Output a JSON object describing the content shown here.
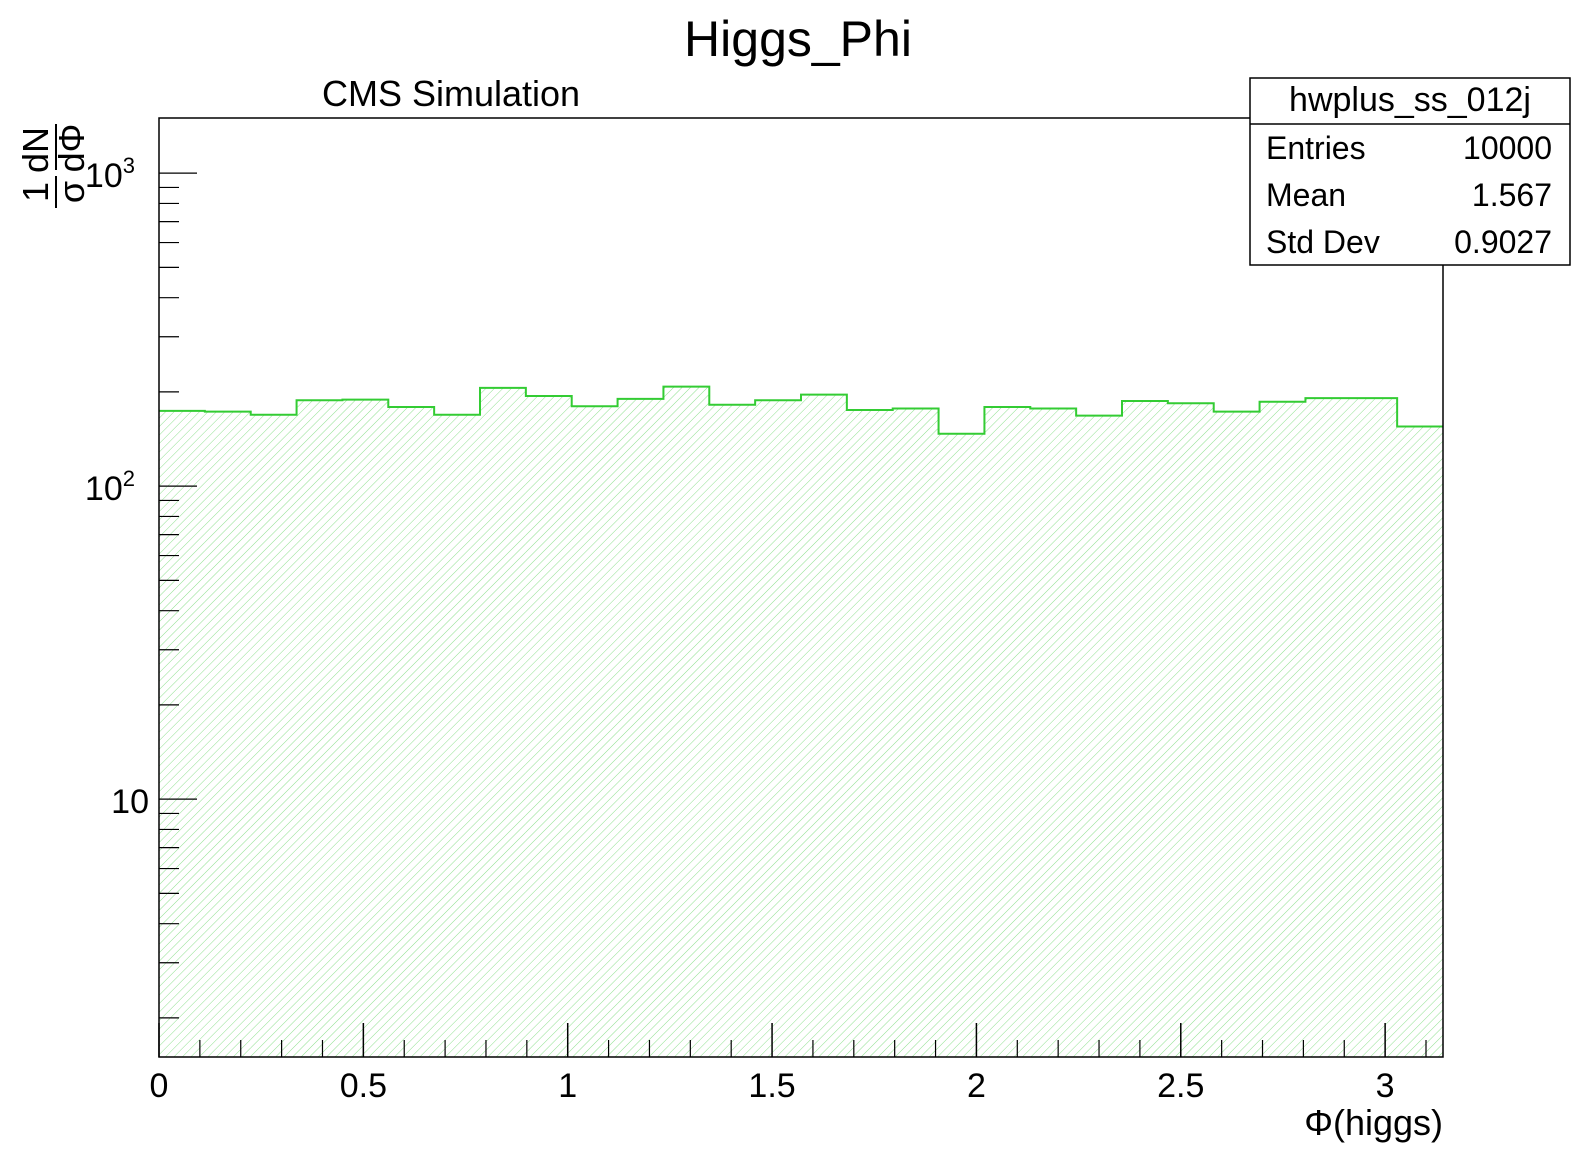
{
  "chart_data": {
    "type": "bar",
    "title": "Higgs_Phi",
    "subtitle": "CMS Simulation",
    "xlabel": "Φ(higgs)",
    "ylabel": {
      "prefix": "1",
      "prefix_den": "σ",
      "num": "dN",
      "den": "dΦ"
    },
    "xlim": [
      0,
      3.1416
    ],
    "ylim": [
      1.5,
      1500
    ],
    "yscale": "log",
    "bin_edges_start": 0,
    "bin_width": 0.1122,
    "values": [
      174,
      173,
      169,
      188,
      189,
      179,
      169,
      206,
      194,
      180,
      190,
      208,
      182,
      188,
      196,
      175,
      177,
      147,
      179,
      177,
      168,
      187,
      184,
      173,
      186,
      191,
      191,
      155
    ],
    "x_ticks": [
      {
        "value": 0,
        "label": "0"
      },
      {
        "value": 0.5,
        "label": "0.5"
      },
      {
        "value": 1,
        "label": "1"
      },
      {
        "value": 1.5,
        "label": "1.5"
      },
      {
        "value": 2,
        "label": "2"
      },
      {
        "value": 2.5,
        "label": "2.5"
      },
      {
        "value": 3,
        "label": "3"
      }
    ],
    "y_ticks": [
      {
        "value": 10,
        "label": "10"
      },
      {
        "value": 100,
        "label": "10",
        "sup": "2"
      },
      {
        "value": 1000,
        "label": "10",
        "sup": "3"
      }
    ],
    "stats": {
      "name": "hwplus_ss_012j",
      "rows": [
        {
          "label": "Entries",
          "value": "10000"
        },
        {
          "label": "Mean",
          "value": "1.567"
        },
        {
          "label": "Std Dev",
          "value": "0.9027"
        }
      ]
    },
    "line_color": "#33cc33",
    "fill_color": "#8fe08f",
    "legend": "top-right",
    "grid": false
  }
}
